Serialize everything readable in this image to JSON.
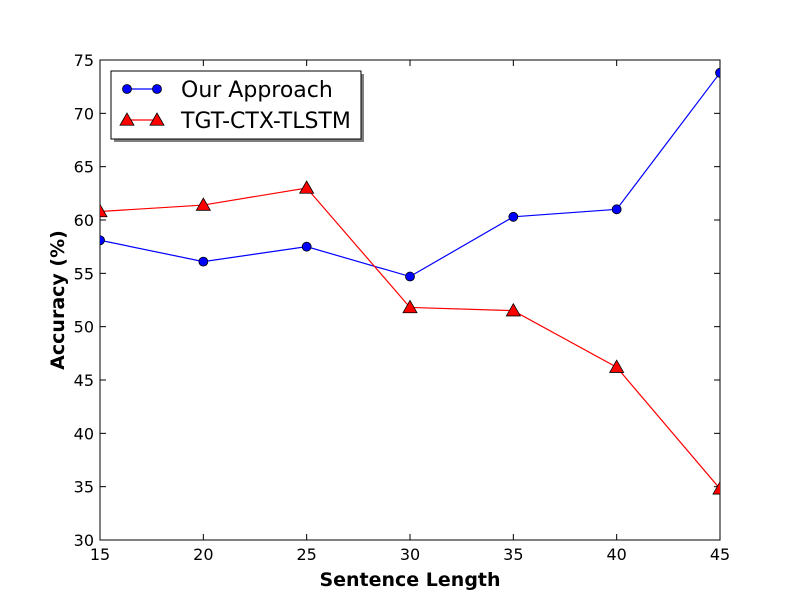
{
  "chart_data": {
    "type": "line",
    "title": "",
    "xlabel": "Sentence Length",
    "ylabel": "Accuracy (%)",
    "xlim": [
      15,
      45
    ],
    "ylim": [
      30,
      75
    ],
    "xticks": [
      15,
      20,
      25,
      30,
      35,
      40,
      45
    ],
    "yticks": [
      30,
      35,
      40,
      45,
      50,
      55,
      60,
      65,
      70,
      75
    ],
    "grid": false,
    "legend_position": "top-left",
    "series": [
      {
        "name": "Our Approach",
        "color": "#0000ff",
        "marker": "circle",
        "x": [
          15,
          20,
          25,
          30,
          35,
          40,
          45
        ],
        "y": [
          58.1,
          56.1,
          57.5,
          54.7,
          60.3,
          61.0,
          73.8
        ]
      },
      {
        "name": "TGT-CTX-TLSTM",
        "color": "#ff0000",
        "marker": "triangle",
        "x": [
          15,
          20,
          25,
          30,
          35,
          40,
          45
        ],
        "y": [
          60.8,
          61.4,
          63.0,
          51.8,
          51.5,
          46.2,
          34.8
        ]
      }
    ]
  }
}
